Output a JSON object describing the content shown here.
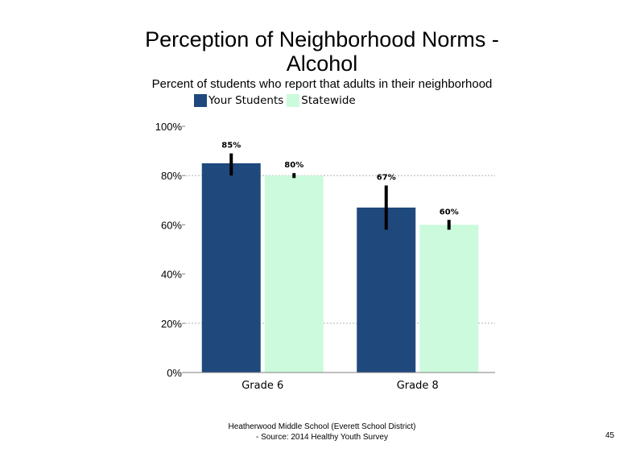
{
  "slide": {
    "title_line1": "Perception of Neighborhood Norms -",
    "title_line2": "Alcohol",
    "subtitle": "Percent of students who report that adults in their neighborhood",
    "footer_line1": "Heatherwood Middle School (Everett School District)",
    "footer_line2": "- Source: 2014 Healthy Youth Survey",
    "page_number": "45"
  },
  "chart_data": {
    "type": "bar",
    "categories": [
      "Grade 6",
      "Grade 8"
    ],
    "series": [
      {
        "name": "Your Students",
        "color": "#1f497d",
        "values": [
          85,
          67
        ],
        "labels": [
          "85%",
          "67%"
        ],
        "error_low": [
          80,
          58
        ],
        "error_high": [
          89,
          76
        ]
      },
      {
        "name": "Statewide",
        "color": "#ccfadc",
        "values": [
          80,
          60
        ],
        "labels": [
          "80%",
          "60%"
        ],
        "error_low": [
          79,
          58
        ],
        "error_high": [
          81,
          62
        ]
      }
    ],
    "ylim": [
      0,
      100
    ],
    "yticks": [
      0,
      20,
      40,
      60,
      80,
      100
    ],
    "ytick_labels": [
      "0%",
      "20%",
      "40%",
      "60%",
      "80%",
      "100%"
    ],
    "grid": "dashed horizontal at 20% and 80%",
    "legend_position": "top"
  }
}
